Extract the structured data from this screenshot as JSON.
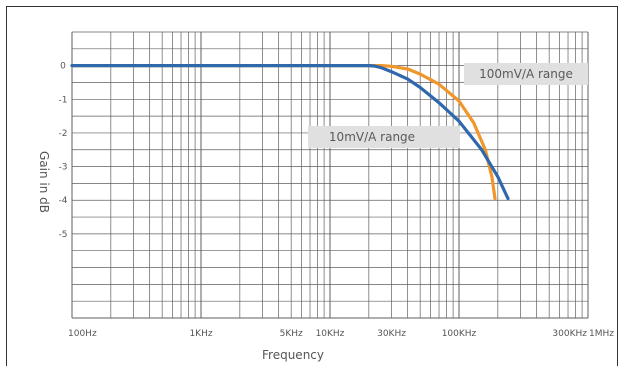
{
  "chart_data": {
    "type": "line",
    "title": "",
    "xlabel": "Frequency",
    "ylabel": "Gain in dB",
    "x_scale": "log",
    "xlim_hz": [
      100,
      1000000
    ],
    "ylim_db": [
      -7.5,
      1
    ],
    "grid": true,
    "y_ticks": [
      {
        "value": 0,
        "label": "0"
      },
      {
        "value": -1,
        "label": "-1"
      },
      {
        "value": -2,
        "label": "-2"
      },
      {
        "value": -3,
        "label": "-3"
      },
      {
        "value": -4,
        "label": "-4"
      },
      {
        "value": -5,
        "label": "-5"
      }
    ],
    "x_ticks": [
      {
        "value": 100,
        "label": "100Hz"
      },
      {
        "value": 1000,
        "label": "1KHz"
      },
      {
        "value": 5000,
        "label": "5KHz"
      },
      {
        "value": 10000,
        "label": "10KHz"
      },
      {
        "value": 30000,
        "label": "30KHz"
      },
      {
        "value": 100000,
        "label": "100KHz"
      },
      {
        "value": 300000,
        "label": "300KHz"
      },
      {
        "value": 1000000,
        "label": "1MHz"
      }
    ],
    "series": [
      {
        "name": "100mV/A range",
        "color": "#f0962a",
        "x": [
          100,
          1000,
          10000,
          20000,
          25000,
          30000,
          40000,
          50000,
          70000,
          100000,
          130000,
          160000,
          180000,
          190000
        ],
        "y": [
          0,
          0,
          0,
          0,
          0,
          -0.02,
          -0.1,
          -0.25,
          -0.55,
          -1.05,
          -1.7,
          -2.5,
          -3.3,
          -3.95
        ]
      },
      {
        "name": "10mV/A range",
        "color": "#2f68ad",
        "x": [
          100,
          1000,
          10000,
          20000,
          22000,
          25000,
          30000,
          40000,
          50000,
          70000,
          100000,
          150000,
          200000,
          240000
        ],
        "y": [
          0,
          0,
          0,
          0,
          -0.01,
          -0.06,
          -0.18,
          -0.4,
          -0.65,
          -1.1,
          -1.65,
          -2.5,
          -3.3,
          -3.95
        ]
      }
    ],
    "annotations": [
      {
        "text": "100mV/A range",
        "series": "100mV/A range"
      },
      {
        "text": "10mV/A range",
        "series": "10mV/A range"
      }
    ]
  }
}
